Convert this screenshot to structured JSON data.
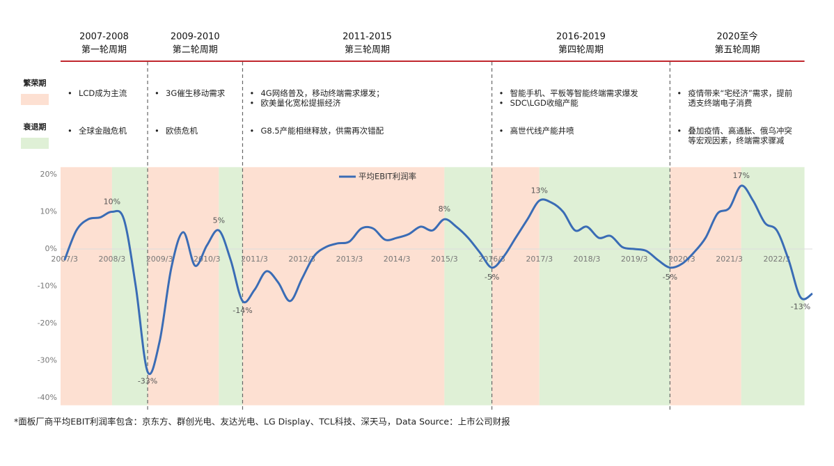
{
  "chart_data": {
    "type": "line",
    "footnote": "*面板厂商平均EBIT利润率包含：京东方、群创光电、友达光电、LG Display、TCL科技、深天马，Data Source：上市公司财报",
    "phase_legend": [
      {
        "name": "繁荣期",
        "color": "#fde0d2"
      },
      {
        "name": "衰退期",
        "color": "#dff0d6"
      }
    ],
    "phases": [
      {
        "phase": 0,
        "from": "2007/2",
        "to": "2008/3"
      },
      {
        "phase": 1,
        "from": "2008/3",
        "to": "2008/12"
      },
      {
        "phase": 0,
        "from": "2008/12",
        "to": "2010/6"
      },
      {
        "phase": 1,
        "from": "2010/6",
        "to": "2010/12"
      },
      {
        "phase": 0,
        "from": "2010/12",
        "to": "2015/3"
      },
      {
        "phase": 1,
        "from": "2015/3",
        "to": "2016/3"
      },
      {
        "phase": 0,
        "from": "2016/3",
        "to": "2017/3"
      },
      {
        "phase": 1,
        "from": "2017/3",
        "to": "2019/12"
      },
      {
        "phase": 0,
        "from": "2019/12",
        "to": "2021/6"
      },
      {
        "phase": 1,
        "from": "2021/6",
        "to": "2022/10"
      }
    ],
    "cycles": [
      {
        "years": "2007-2008",
        "name": "第一轮周期",
        "from": "2007/2",
        "to": "2008/12",
        "boom": [
          "LCD成为主流"
        ],
        "recession": [
          "全球金融危机"
        ]
      },
      {
        "years": "2009-2010",
        "name": "第二轮周期",
        "from": "2008/12",
        "to": "2010/12",
        "boom": [
          "3G催生移动需求"
        ],
        "recession": [
          "欧债危机"
        ]
      },
      {
        "years": "2011-2015",
        "name": "第三轮周期",
        "from": "2010/12",
        "to": "2016/3",
        "boom": [
          "4G网络普及，移动终端需求爆发；",
          "欧美量化宽松提振经济"
        ],
        "recession": [
          "G8.5产能相继释放，供需再次错配"
        ]
      },
      {
        "years": "2016-2019",
        "name": "第四轮周期",
        "from": "2016/3",
        "to": "2019/12",
        "boom": [
          "智能手机、平板等智能终端需求爆发",
          "SDC\\LGD收缩产能"
        ],
        "recession": [
          "高世代线产能井喷"
        ]
      },
      {
        "years": "2020至今",
        "name": "第五轮周期",
        "from": "2019/12",
        "to": "2022/10",
        "boom": [
          "疫情带来“宅经济”需求，提前透支终端电子消费"
        ],
        "recession": [
          "叠加疫情、高通胀、俄乌冲突等宏观因素，终端需求骤减"
        ]
      }
    ],
    "x": [
      "2007/3",
      "2007/6",
      "2007/9",
      "2007/12",
      "2008/3",
      "2008/6",
      "2008/9",
      "2008/12",
      "2009/3",
      "2009/6",
      "2009/9",
      "2009/12",
      "2010/3",
      "2010/6",
      "2010/9",
      "2010/12",
      "2011/3",
      "2011/6",
      "2011/9",
      "2011/12",
      "2012/3",
      "2012/6",
      "2012/9",
      "2012/12",
      "2013/3",
      "2013/6",
      "2013/9",
      "2013/12",
      "2014/3",
      "2014/6",
      "2014/9",
      "2014/12",
      "2015/3",
      "2015/6",
      "2015/9",
      "2015/12",
      "2016/3",
      "2016/6",
      "2016/9",
      "2016/12",
      "2017/3",
      "2017/6",
      "2017/9",
      "2017/12",
      "2018/3",
      "2018/6",
      "2018/9",
      "2018/12",
      "2019/3",
      "2019/6",
      "2019/9",
      "2019/12",
      "2020/3",
      "2020/6",
      "2020/9",
      "2020/12",
      "2021/3",
      "2021/6",
      "2021/9",
      "2021/12",
      "2022/3",
      "2022/6",
      "2022/9",
      "2022/12"
    ],
    "series": [
      {
        "name": "平均EBIT利润率",
        "color": "#3a6cb5",
        "values": [
          -3,
          5,
          8,
          8.5,
          10,
          8,
          -10,
          -33,
          -25,
          -5,
          4.5,
          -4.5,
          1,
          5,
          -3,
          -14,
          -11,
          -6,
          -9,
          -14,
          -8,
          -2,
          0.5,
          1.5,
          2,
          5.5,
          5.5,
          2.5,
          3,
          4,
          6,
          5,
          8,
          6,
          3,
          -1,
          -5,
          -2,
          3,
          8,
          13,
          12.5,
          10,
          5,
          6,
          3,
          3.5,
          0.5,
          0,
          -0.5,
          -3,
          -5,
          -4,
          -1,
          3,
          9.5,
          11,
          17,
          13,
          7,
          5,
          -3,
          -13,
          -12
        ],
        "value_labels": [
          null,
          null,
          null,
          null,
          "10%",
          null,
          null,
          "-33%",
          null,
          null,
          null,
          null,
          null,
          "5%",
          null,
          "-14%",
          null,
          null,
          null,
          null,
          null,
          null,
          null,
          null,
          null,
          null,
          null,
          null,
          null,
          null,
          null,
          null,
          "8%",
          null,
          null,
          null,
          "-5%",
          null,
          null,
          null,
          "13%",
          null,
          null,
          null,
          null,
          null,
          null,
          null,
          null,
          null,
          null,
          "-5%",
          null,
          null,
          null,
          null,
          null,
          "17%",
          null,
          null,
          null,
          null,
          "-13%",
          null
        ]
      }
    ],
    "xlim": [
      "2007/2",
      "2022/12"
    ],
    "xticks": [
      "2007/3",
      "2008/3",
      "2009/3",
      "2010/3",
      "2011/3",
      "2012/3",
      "2013/3",
      "2014/3",
      "2015/3",
      "2016/3",
      "2017/3",
      "2018/3",
      "2019/3",
      "2020/3",
      "2021/3",
      "2022/3"
    ],
    "ylim": [
      -42,
      22
    ],
    "yticks": [
      {
        "value": 20,
        "label": "20%"
      },
      {
        "value": 10,
        "label": "10%"
      },
      {
        "value": 0,
        "label": "0%"
      },
      {
        "value": -10,
        "label": "-10%"
      },
      {
        "value": -20,
        "label": "-20%"
      },
      {
        "value": -30,
        "label": "-30%"
      },
      {
        "value": -40,
        "label": "-40%"
      }
    ],
    "legend": "top"
  }
}
